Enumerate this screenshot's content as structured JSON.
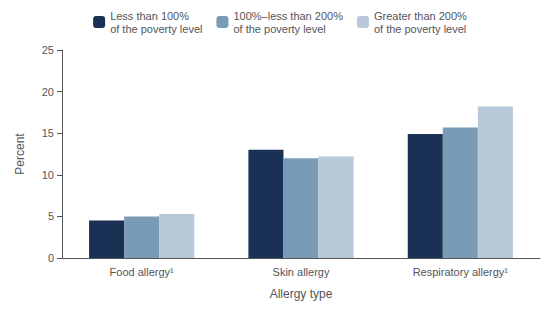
{
  "chart_data": {
    "type": "bar",
    "xlabel": "Allergy type",
    "ylabel": "Percent",
    "categories": [
      "Food allergy¹",
      "Skin allergy",
      "Respiratory allergy¹"
    ],
    "series": [
      {
        "name": "Less than 100%\nof the poverty level",
        "color": "#1a3055",
        "values": [
          4.5,
          13.0,
          14.9
        ]
      },
      {
        "name": "100%–less than 200%\nof the poverty level",
        "color": "#7a9bb5",
        "values": [
          5.0,
          12.0,
          15.7
        ]
      },
      {
        "name": "Greater than 200%\nof the poverty level",
        "color": "#b8c8d8",
        "values": [
          5.3,
          12.2,
          18.2
        ]
      }
    ],
    "ylim": [
      0,
      25
    ],
    "yticks": [
      0,
      5,
      10,
      15,
      20,
      25
    ],
    "grid": false,
    "legend": "top"
  }
}
